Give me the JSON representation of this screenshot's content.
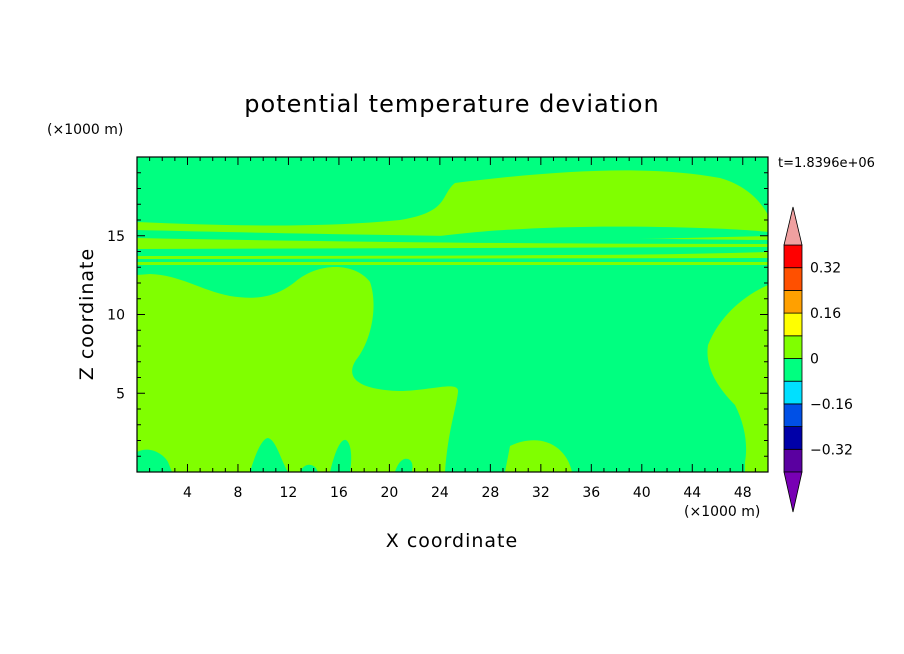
{
  "chart_data": {
    "type": "heatmap",
    "title": "potential temperature deviation",
    "xlabel": "X coordinate",
    "ylabel": "Z coordinate",
    "x_unit": "(×1000 m)",
    "y_unit": "(×1000 m)",
    "time_label": "t=1.8396e+06",
    "xlim": [
      0,
      50
    ],
    "ylim": [
      0,
      20
    ],
    "x_ticks": [
      4,
      8,
      12,
      16,
      20,
      24,
      28,
      32,
      36,
      40,
      44,
      48
    ],
    "y_ticks": [
      5,
      10,
      15
    ],
    "colorbar": {
      "levels": [
        -0.4,
        -0.32,
        -0.24,
        -0.16,
        -0.08,
        0,
        0.08,
        0.16,
        0.24,
        0.32,
        0.4
      ],
      "colors": [
        "#5a00a0",
        "#0000a8",
        "#0050e6",
        "#00e0ff",
        "#00ff80",
        "#80ff00",
        "#ffff00",
        "#ffa000",
        "#ff5000",
        "#ff0000"
      ],
      "under_color": "#7800b4",
      "over_color": "#f0a0a0",
      "labels": [
        "0.32",
        "0.16",
        "0",
        "−0.16",
        "−0.32"
      ],
      "label_values": [
        0.32,
        0.16,
        0,
        -0.16,
        -0.32
      ]
    },
    "field_colors": {
      "positive": "#80ff00",
      "negative": "#00ff80"
    },
    "series": [
      {
        "band": "0 to 0.08",
        "color": "#80ff00"
      },
      {
        "band": "-0.08 to 0",
        "color": "#00ff80"
      }
    ]
  }
}
